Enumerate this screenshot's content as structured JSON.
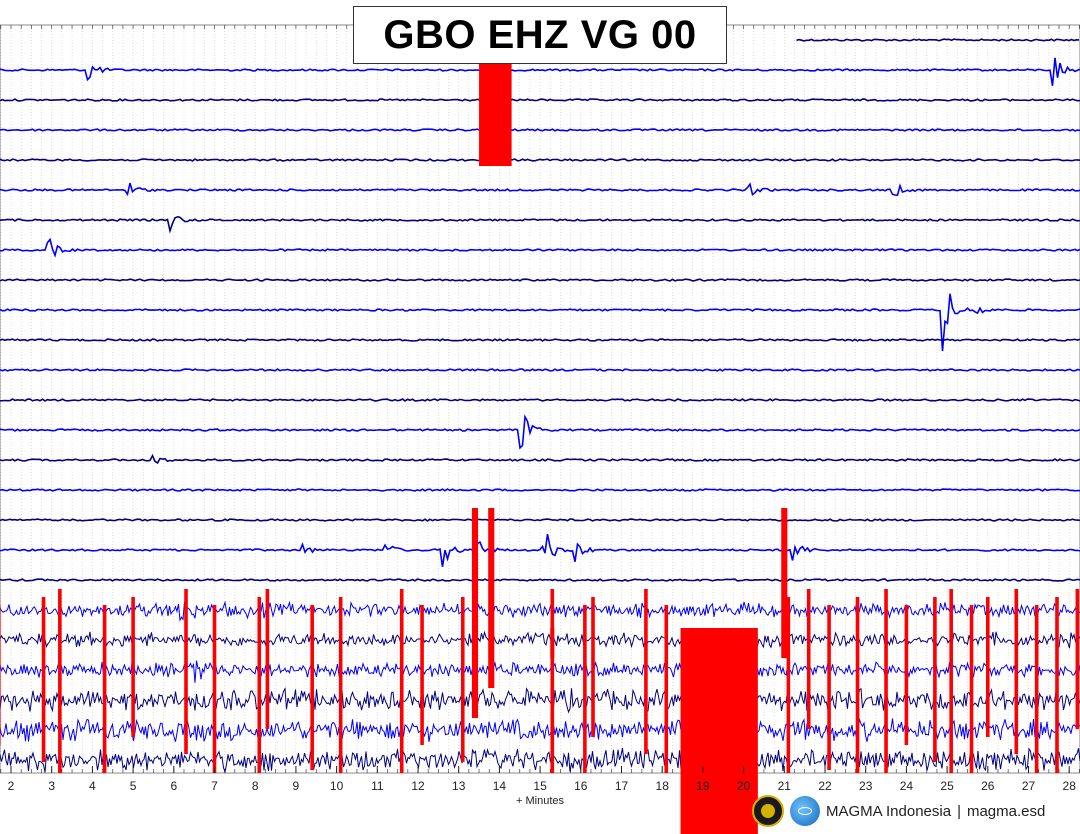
{
  "chart_data": {
    "type": "line",
    "title": "GBO EHZ VG 00",
    "xlabel": "+ Minutes",
    "ylabel": "",
    "xlim": [
      1.7,
      28.4
    ],
    "x_ticks": [
      2,
      3,
      4,
      5,
      6,
      7,
      8,
      9,
      10,
      11,
      12,
      13,
      14,
      15,
      16,
      17,
      18,
      19,
      20,
      21,
      22,
      23,
      24,
      25,
      26,
      27,
      28
    ],
    "grid": true,
    "trace_count": 25,
    "series_colors": [
      "#000080",
      "#0000ff"
    ],
    "clipped_color": "#ff0000",
    "events": [
      {
        "row": 1,
        "minute": 3.9,
        "amp": 0.5
      },
      {
        "row": 1,
        "minute": 27.6,
        "amp": 0.8
      },
      {
        "row": 5,
        "minute": 4.9,
        "amp": 0.3
      },
      {
        "row": 5,
        "minute": 20.1,
        "amp": 0.3
      },
      {
        "row": 5,
        "minute": 23.7,
        "amp": 0.3
      },
      {
        "row": 6,
        "minute": 5.9,
        "amp": 0.4
      },
      {
        "row": 7,
        "minute": 2.9,
        "amp": 0.5
      },
      {
        "row": 9,
        "minute": 25.7,
        "amp": 0.3
      },
      {
        "row": 9,
        "minute": 24.9,
        "amp": 1.6
      },
      {
        "row": 13,
        "minute": 14.5,
        "amp": 1.1
      },
      {
        "row": 14,
        "minute": 5.4,
        "amp": 0.3
      },
      {
        "row": 17,
        "minute": 9.1,
        "amp": 0.3
      },
      {
        "row": 17,
        "minute": 11.2,
        "amp": 0.3
      },
      {
        "row": 17,
        "minute": 12.6,
        "amp": 0.8
      },
      {
        "row": 17,
        "minute": 13.4,
        "amp": 0.8
      },
      {
        "row": 17,
        "minute": 15.1,
        "amp": 0.9
      },
      {
        "row": 17,
        "minute": 15.9,
        "amp": 0.4
      },
      {
        "row": 17,
        "minute": 21.2,
        "amp": 0.6
      },
      {
        "row": 19,
        "minute": 6.1,
        "amp": 0.6
      },
      {
        "row": 21,
        "minute": 6.5,
        "amp": 0.5
      }
    ],
    "clipped_events": [
      {
        "row": 1,
        "minute": 13.9,
        "width_minutes": 0.8,
        "rows_span": 3.6
      },
      {
        "row": 16,
        "minute": 13.4,
        "width_minutes": 0.15,
        "rows_span": 7
      },
      {
        "row": 16,
        "minute": 13.8,
        "width_minutes": 0.15,
        "rows_span": 6
      },
      {
        "row": 16,
        "minute": 21.0,
        "width_minutes": 0.15,
        "rows_span": 5
      },
      {
        "row": 20,
        "minute": 19.4,
        "width_minutes": 1.9,
        "rows_span": 7
      },
      {
        "row": 20,
        "minute": 15.3,
        "width_minutes": 0.1,
        "rows_span": 1
      }
    ],
    "spike_minutes": [
      1.7,
      2.8,
      3.2,
      4.3,
      5.0,
      6.3,
      7.0,
      8.1,
      8.3,
      9.4,
      10.1,
      11.6,
      12.1,
      13.1,
      15.3,
      16.1,
      16.3,
      17.6,
      18.1,
      21.1,
      21.6,
      22.1,
      22.8,
      23.5,
      24.0,
      24.7,
      25.1,
      25.6,
      26.0,
      26.7,
      27.2,
      27.7,
      28.2
    ]
  },
  "footer": {
    "brand": "MAGMA Indonesia",
    "separator": "|",
    "site": "magma.esd"
  },
  "icons": {
    "emblem": "government-emblem-icon",
    "globe": "globe-logo-icon"
  }
}
